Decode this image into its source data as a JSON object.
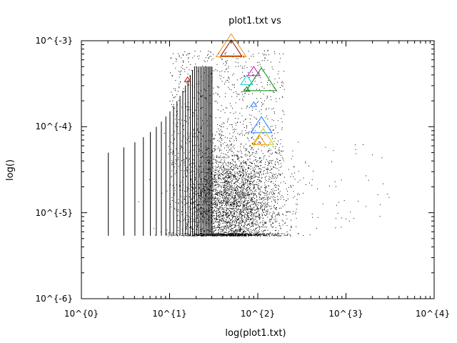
{
  "chart_data": {
    "type": "scatter",
    "title": "plot1.txt vs",
    "xlabel": "log(plot1.txt)",
    "ylabel": "log()",
    "x_scale": "log",
    "y_scale": "log",
    "xlim": [
      1,
      10000
    ],
    "ylim": [
      1e-06,
      0.001
    ],
    "x_ticks": [
      "10^{0}",
      "10^{1}",
      "10^{2}",
      "10^{3}",
      "10^{4}"
    ],
    "y_ticks": [
      "10^{-6}",
      "10^{-5}",
      "10^{-4}",
      "10^{-3}"
    ],
    "grid": false,
    "points_color": "#000000",
    "vertical_stripes_x": [
      2,
      3,
      4,
      5,
      6,
      7,
      8,
      9,
      10,
      11,
      12,
      13,
      14,
      15,
      16,
      17,
      18,
      19,
      20,
      21,
      22,
      23,
      24,
      25,
      26,
      27,
      28,
      29,
      30
    ],
    "stripe_y_min": 5.4e-06,
    "density_center_x": 50,
    "density_center_y": 1.2e-05,
    "markers": [
      {
        "x": 50,
        "y": 0.00082,
        "size": "large",
        "color": "#ff8c00"
      },
      {
        "x": 50,
        "y": 0.00078,
        "size": "medium",
        "color": "#8b0000"
      },
      {
        "x": 90,
        "y": 0.00043,
        "size": "small",
        "color": "#cc00cc"
      },
      {
        "x": 110,
        "y": 0.00033,
        "size": "large",
        "color": "#008000"
      },
      {
        "x": 75,
        "y": 0.00034,
        "size": "small",
        "color": "#00cccc"
      },
      {
        "x": 16,
        "y": 0.00035,
        "size": "tiny",
        "color": "#cc0000"
      },
      {
        "x": 75,
        "y": 0.00027,
        "size": "tiny",
        "color": "#008000"
      },
      {
        "x": 90,
        "y": 0.00018,
        "size": "tiny",
        "color": "#1f77ff"
      },
      {
        "x": 110,
        "y": 0.0001,
        "size": "medium",
        "color": "#1f77ff"
      },
      {
        "x": 115,
        "y": 7.3e-05,
        "size": "medium",
        "color": "#cccc00"
      },
      {
        "x": 105,
        "y": 6.8e-05,
        "size": "small",
        "color": "#ff8c00"
      }
    ]
  }
}
